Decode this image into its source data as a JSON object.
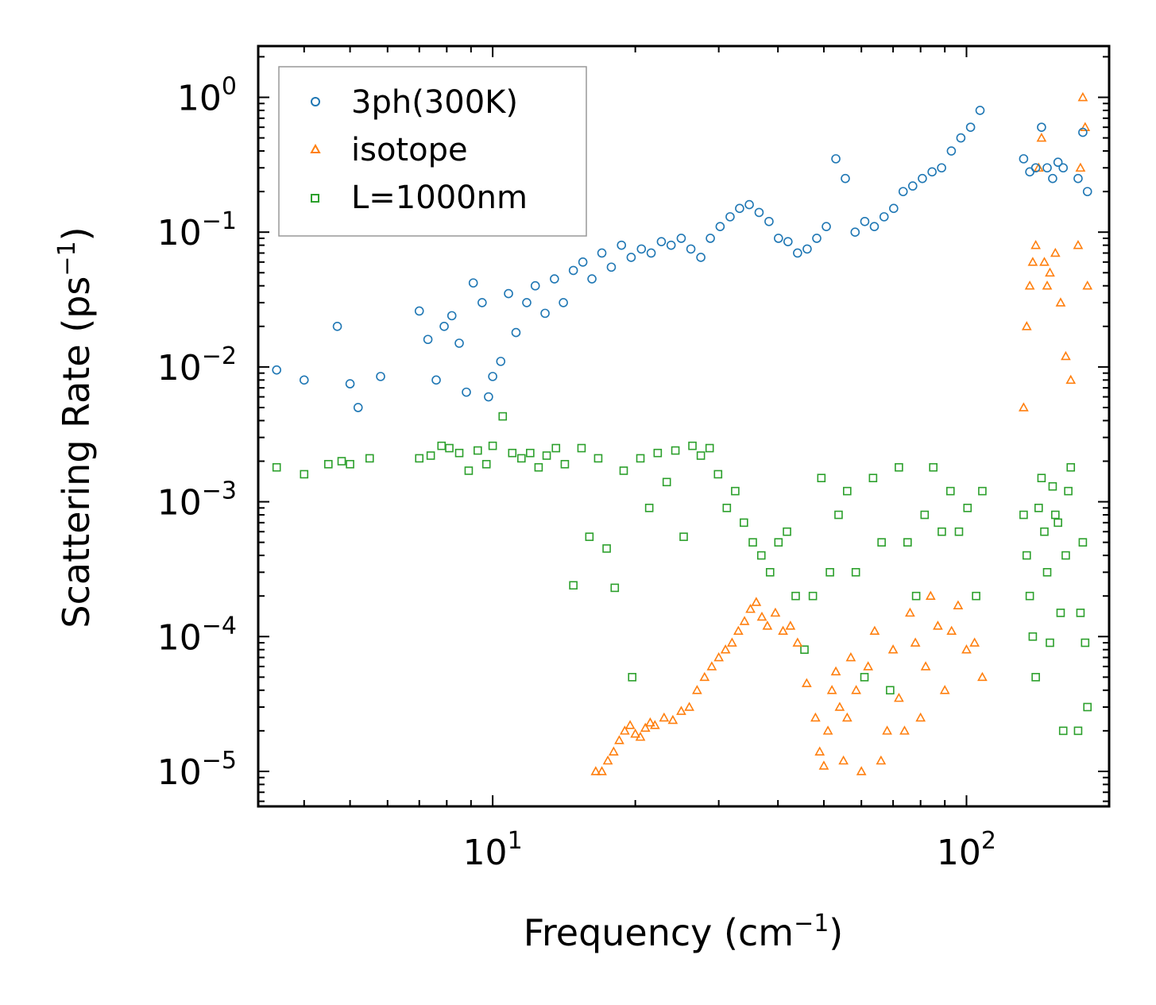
{
  "chart_data": {
    "type": "scatter",
    "xscale": "log",
    "yscale": "log",
    "xlabel": "Frequency (cm",
    "xlabel_unit_exp": "−1",
    "xlabel_close": ")",
    "ylabel": "Scattering Rate (ps",
    "ylabel_unit_exp": "−1",
    "ylabel_close": ")",
    "xlim": [
      3.2,
      200
    ],
    "ylim": [
      5.5e-06,
      2.4
    ],
    "x_ticks": [
      {
        "value": 10,
        "base": "10",
        "exp": "1"
      },
      {
        "value": 100,
        "base": "10",
        "exp": "2"
      }
    ],
    "y_ticks": [
      {
        "value": 1,
        "base": "10",
        "exp": "0"
      },
      {
        "value": 0.1,
        "base": "10",
        "exp": "−1"
      },
      {
        "value": 0.01,
        "base": "10",
        "exp": "−2"
      },
      {
        "value": 0.001,
        "base": "10",
        "exp": "−3"
      },
      {
        "value": 0.0001,
        "base": "10",
        "exp": "−4"
      },
      {
        "value": 1e-05,
        "base": "10",
        "exp": "−5"
      }
    ],
    "legend_position": "top-left",
    "series": [
      {
        "name": "3ph(300K)",
        "marker": "circle",
        "color": "#1f77b4",
        "x": [
          3.5,
          4.0,
          4.7,
          5.0,
          5.2,
          5.8,
          7.0,
          7.3,
          7.6,
          7.9,
          8.2,
          8.5,
          8.8,
          9.1,
          9.5,
          9.8,
          10.0,
          10.4,
          10.8,
          11.2,
          11.8,
          12.3,
          12.9,
          13.5,
          14.1,
          14.8,
          15.5,
          16.2,
          17.0,
          17.8,
          18.7,
          19.6,
          20.6,
          21.6,
          22.7,
          23.8,
          25.0,
          26.2,
          27.5,
          28.8,
          30.2,
          31.7,
          33.2,
          34.8,
          36.5,
          38.3,
          40.1,
          42.0,
          44.0,
          46.1,
          48.3,
          50.6,
          53.0,
          55.5,
          58.2,
          61.0,
          63.9,
          67.0,
          70.2,
          73.5,
          77.0,
          80.7,
          84.6,
          88.6,
          92.9,
          97.3,
          102.0,
          106.8,
          132.0,
          136.0,
          140.0,
          144.0,
          148.0,
          152.0,
          156.0,
          160.0,
          172.0,
          176.0,
          180.0
        ],
        "y": [
          0.0095,
          0.008,
          0.02,
          0.0075,
          0.005,
          0.0085,
          0.026,
          0.016,
          0.008,
          0.02,
          0.024,
          0.015,
          0.0065,
          0.042,
          0.03,
          0.006,
          0.0085,
          0.011,
          0.035,
          0.018,
          0.03,
          0.04,
          0.025,
          0.045,
          0.03,
          0.052,
          0.06,
          0.045,
          0.07,
          0.055,
          0.08,
          0.065,
          0.075,
          0.07,
          0.085,
          0.08,
          0.09,
          0.075,
          0.065,
          0.09,
          0.11,
          0.13,
          0.15,
          0.16,
          0.14,
          0.12,
          0.09,
          0.085,
          0.07,
          0.075,
          0.09,
          0.11,
          0.35,
          0.25,
          0.1,
          0.12,
          0.11,
          0.13,
          0.15,
          0.2,
          0.22,
          0.25,
          0.28,
          0.3,
          0.4,
          0.5,
          0.6,
          0.8,
          0.35,
          0.28,
          0.3,
          0.6,
          0.3,
          0.25,
          0.33,
          0.3,
          0.25,
          0.55,
          0.2
        ]
      },
      {
        "name": "isotope",
        "marker": "triangle",
        "color": "#ff7f0e",
        "x": [
          16.5,
          17.0,
          17.5,
          18.0,
          18.5,
          19.0,
          19.5,
          20.0,
          20.5,
          21.0,
          21.5,
          22.0,
          23.0,
          24.0,
          25.0,
          26.0,
          27.0,
          28.0,
          29.0,
          30.0,
          31.0,
          32.0,
          33.0,
          34.0,
          35.0,
          36.0,
          37.0,
          38.0,
          39.5,
          41.0,
          42.5,
          44.0,
          46.0,
          48.0,
          49.0,
          50.0,
          51.0,
          52.0,
          53.0,
          54.0,
          55.0,
          56.0,
          57.0,
          58.5,
          60.0,
          62.0,
          64.0,
          66.0,
          68.0,
          70.0,
          72.0,
          74.0,
          76.0,
          78.0,
          80.0,
          82.0,
          84.0,
          87.0,
          90.0,
          93.0,
          96.0,
          100.0,
          104.0,
          108.0,
          132.0,
          134.0,
          136.0,
          138.0,
          140.0,
          142.0,
          144.0,
          146.0,
          148.0,
          150.0,
          154.0,
          158.0,
          162.0,
          166.0,
          172.0,
          174.0,
          176.0,
          178.0,
          180.0
        ],
        "y": [
          1e-05,
          1e-05,
          1.2e-05,
          1.4e-05,
          1.7e-05,
          2e-05,
          2.2e-05,
          1.9e-05,
          1.8e-05,
          2.1e-05,
          2.3e-05,
          2.2e-05,
          2.5e-05,
          2.4e-05,
          2.8e-05,
          3e-05,
          4e-05,
          5e-05,
          6e-05,
          7e-05,
          8e-05,
          9e-05,
          0.00011,
          0.00013,
          0.00016,
          0.00018,
          0.00014,
          0.00012,
          0.00015,
          0.00011,
          0.00012,
          9e-05,
          4.5e-05,
          2.5e-05,
          1.4e-05,
          1.1e-05,
          2e-05,
          4e-05,
          5.5e-05,
          3e-05,
          1.2e-05,
          2.5e-05,
          7e-05,
          4e-05,
          1e-05,
          6e-05,
          0.00011,
          1.2e-05,
          2e-05,
          8e-05,
          3.5e-05,
          2e-05,
          0.00015,
          9e-05,
          2.5e-05,
          6e-05,
          0.0002,
          0.00012,
          4e-05,
          0.00011,
          0.00017,
          8e-05,
          9e-05,
          5e-05,
          0.005,
          0.02,
          0.04,
          0.06,
          0.08,
          0.3,
          0.5,
          0.06,
          0.04,
          0.05,
          0.07,
          0.03,
          0.012,
          0.008,
          0.08,
          0.3,
          1.0,
          0.6,
          0.04
        ]
      },
      {
        "name": "L=1000nm",
        "marker": "square",
        "color": "#2ca02c",
        "x": [
          3.5,
          4.0,
          4.5,
          4.8,
          5.0,
          5.5,
          7.0,
          7.4,
          7.8,
          8.1,
          8.5,
          8.9,
          9.3,
          9.7,
          10.0,
          10.5,
          11.0,
          11.5,
          12.0,
          12.5,
          13.0,
          13.6,
          14.2,
          14.8,
          15.4,
          16.0,
          16.7,
          17.4,
          18.1,
          18.9,
          19.7,
          20.5,
          21.4,
          22.3,
          23.3,
          24.3,
          25.3,
          26.4,
          27.5,
          28.7,
          29.9,
          31.2,
          32.5,
          33.9,
          35.4,
          36.9,
          38.5,
          40.1,
          41.8,
          43.6,
          45.5,
          47.4,
          49.4,
          51.5,
          53.7,
          56.0,
          58.4,
          60.9,
          63.5,
          66.2,
          69.0,
          72.0,
          75.1,
          78.3,
          81.6,
          85.1,
          88.7,
          92.5,
          96.4,
          100.5,
          104.8,
          108.0,
          132.0,
          134.0,
          136.0,
          138.0,
          140.0,
          142.0,
          144.0,
          146.0,
          148.0,
          150.0,
          152.0,
          154.0,
          156.0,
          158.0,
          160.0,
          162.0,
          164.0,
          166.0,
          172.0,
          174.0,
          176.0,
          178.0,
          180.0
        ],
        "y": [
          0.0018,
          0.0016,
          0.0019,
          0.002,
          0.0019,
          0.0021,
          0.0021,
          0.0022,
          0.0026,
          0.0025,
          0.0023,
          0.0017,
          0.0024,
          0.0019,
          0.0026,
          0.0043,
          0.0023,
          0.0021,
          0.0023,
          0.0018,
          0.0022,
          0.0025,
          0.0019,
          0.00024,
          0.0025,
          0.00055,
          0.0021,
          0.00045,
          0.00023,
          0.0017,
          5e-05,
          0.0021,
          0.0009,
          0.0023,
          0.0014,
          0.0024,
          0.00055,
          0.0026,
          0.0022,
          0.0025,
          0.0016,
          0.0009,
          0.0012,
          0.0007,
          0.0005,
          0.0004,
          0.0003,
          0.0005,
          0.0006,
          0.0002,
          8e-05,
          0.0002,
          0.0015,
          0.0003,
          0.0008,
          0.0012,
          0.0003,
          5e-05,
          0.0015,
          0.0005,
          4e-05,
          0.0018,
          0.0005,
          0.0002,
          0.0008,
          0.0018,
          0.0006,
          0.0012,
          0.0006,
          0.0009,
          0.0002,
          0.0012,
          0.0008,
          0.0004,
          0.0002,
          0.0001,
          5e-05,
          0.0009,
          0.0015,
          0.0006,
          0.0003,
          9e-05,
          0.0013,
          0.0008,
          0.0007,
          0.00015,
          2e-05,
          0.0004,
          0.0012,
          0.0018,
          2e-05,
          0.00015,
          0.0005,
          9e-05,
          3e-05
        ]
      }
    ]
  }
}
